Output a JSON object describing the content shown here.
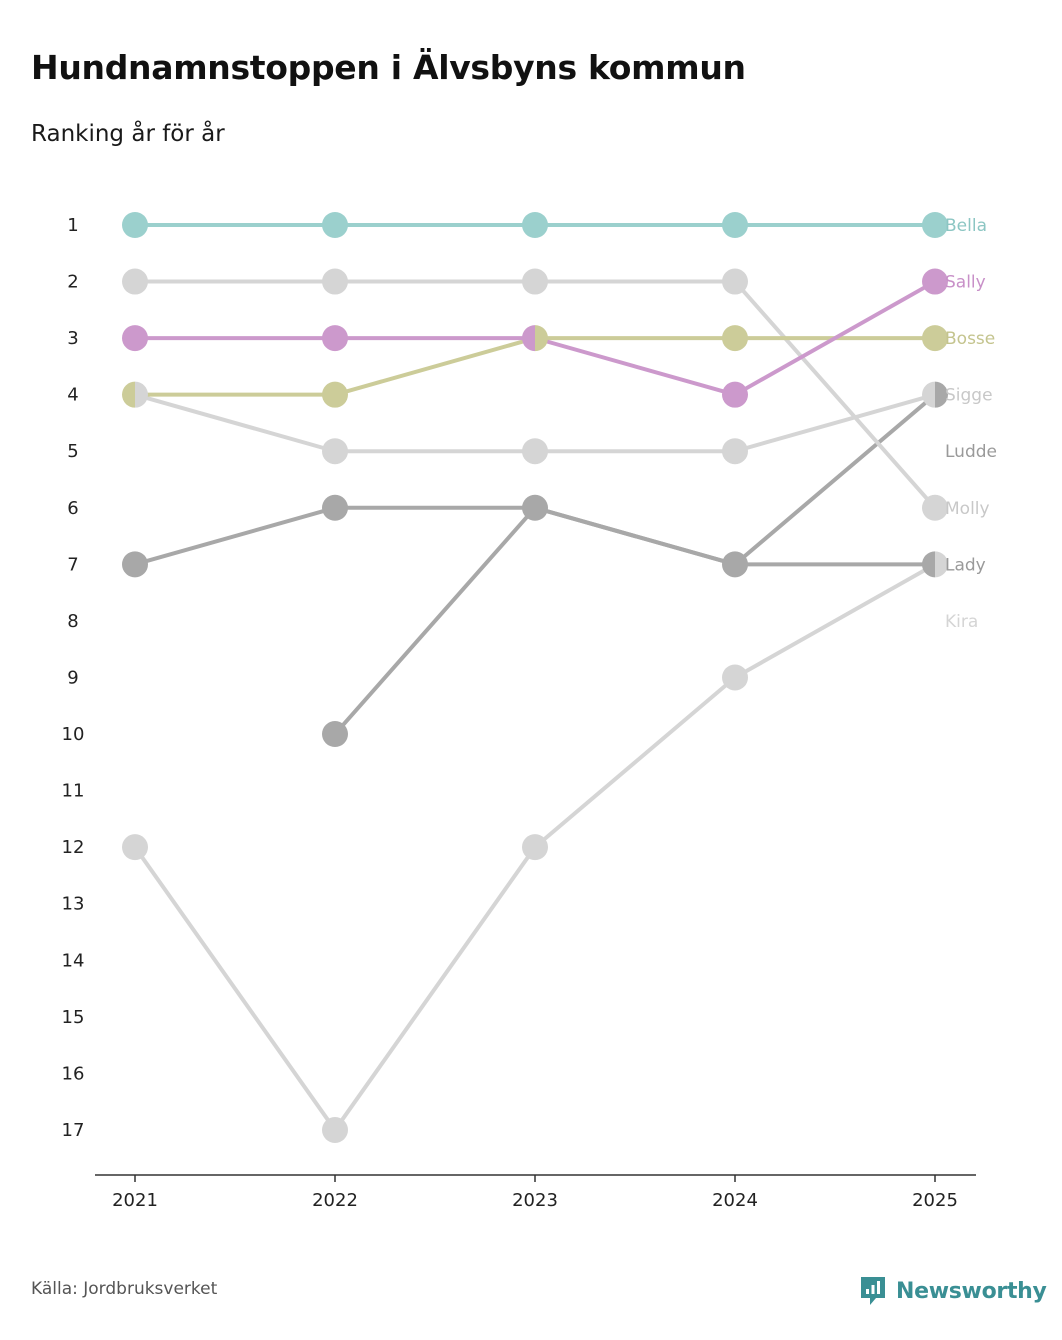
{
  "header": {
    "title": "Hundnamnstoppen i Älvsbyns kommun",
    "subtitle": "Ranking år för år"
  },
  "footer": {
    "source": "Källa: Jordbruksverket",
    "brand": "Newsworthy"
  },
  "colors": {
    "teal": "#9bd0cd",
    "purple": "#cc99cc",
    "olive": "#cccc99",
    "lightgray": "#d5d5d5",
    "darkgray": "#a8a8a8",
    "axis": "#333333",
    "brand": "#3a8f94"
  },
  "chart_data": {
    "type": "line",
    "title": "Hundnamnstoppen i Älvsbyns kommun",
    "subtitle": "Ranking år för år",
    "x": [
      "2021",
      "2022",
      "2023",
      "2024",
      "2025"
    ],
    "ylim": [
      1,
      17
    ],
    "y_inverted": true,
    "yticks": [
      1,
      2,
      3,
      4,
      5,
      6,
      7,
      8,
      9,
      10,
      11,
      12,
      13,
      14,
      15,
      16,
      17
    ],
    "series": [
      {
        "name": "Kira",
        "values": [
          12,
          17,
          12,
          9,
          7
        ],
        "color": "#d5d5d5",
        "label_color": "#d5d5d5"
      },
      {
        "name": "Ludde",
        "values": [
          null,
          10,
          6,
          7,
          4
        ],
        "color": "#a8a8a8",
        "label_color": "#9a9a9a"
      },
      {
        "name": "Lady",
        "values": [
          7,
          6,
          6,
          7,
          7
        ],
        "color": "#a8a8a8",
        "label_color": "#9a9a9a"
      },
      {
        "name": "Molly",
        "values": [
          2,
          2,
          2,
          2,
          6
        ],
        "color": "#d5d5d5",
        "label_color": "#c8c8c8"
      },
      {
        "name": "Sigge",
        "values": [
          4,
          5,
          5,
          5,
          4
        ],
        "color": "#d5d5d5",
        "label_color": "#c8c8c8"
      },
      {
        "name": "Bosse",
        "values": [
          4,
          4,
          3,
          3,
          3
        ],
        "color": "#cccc99",
        "label_color": "#c4c48e"
      },
      {
        "name": "Sally",
        "values": [
          3,
          3,
          3,
          4,
          2
        ],
        "color": "#cc99cc",
        "label_color": "#c890c8"
      },
      {
        "name": "Bella",
        "values": [
          1,
          1,
          1,
          1,
          1
        ],
        "color": "#9bd0cd",
        "label_color": "#8cc6c3"
      }
    ],
    "end_labels": [
      {
        "name": "Bella",
        "rank": 1
      },
      {
        "name": "Sally",
        "rank": 2
      },
      {
        "name": "Bosse",
        "rank": 3
      },
      {
        "name": "Sigge",
        "rank": 4
      },
      {
        "name": "Ludde",
        "rank": 5
      },
      {
        "name": "Molly",
        "rank": 6
      },
      {
        "name": "Lady",
        "rank": 7
      },
      {
        "name": "Kira",
        "rank": 8
      }
    ],
    "legend": "none"
  }
}
